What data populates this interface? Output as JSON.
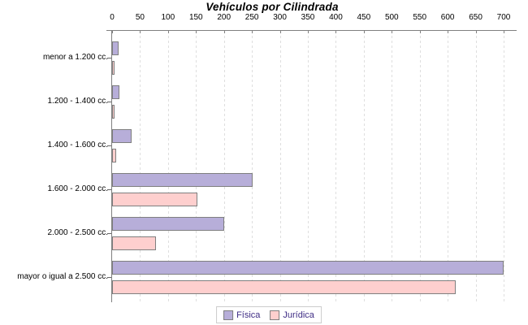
{
  "chart_data": {
    "type": "bar",
    "orientation": "horizontal",
    "title": "Vehículos por Cilindrada",
    "categories": [
      "menor a 1.200 cc.",
      "1.200 - 1.400 cc.",
      "1.400 - 1.600 cc.",
      "1.600 - 2.000 cc.",
      "2.000 - 2.500 cc.",
      "mayor o igual a 2.500 cc."
    ],
    "series": [
      {
        "name": "Física",
        "color": "#b7aed9",
        "values": [
          9,
          10,
          32,
          248,
          197,
          697
        ]
      },
      {
        "name": "Jurídica",
        "color": "#fecfce",
        "values": [
          2,
          2,
          4,
          150,
          75,
          612
        ]
      }
    ],
    "xlim": [
      0,
      700
    ],
    "xticks": [
      0,
      50,
      100,
      150,
      200,
      250,
      300,
      350,
      400,
      450,
      500,
      550,
      600,
      650,
      700
    ],
    "xlabel": "",
    "ylabel": "",
    "grid": "vertical-dashed",
    "legend_position": "bottom",
    "legend": [
      "Física",
      "Jurídica"
    ]
  },
  "colors": {
    "title_text": "#000000",
    "axis": "#808080",
    "gridline": "#dedede",
    "bar_outline": "#7f7f7f",
    "legend_text": "#3f2d85",
    "legend_border": "#cccccc"
  }
}
